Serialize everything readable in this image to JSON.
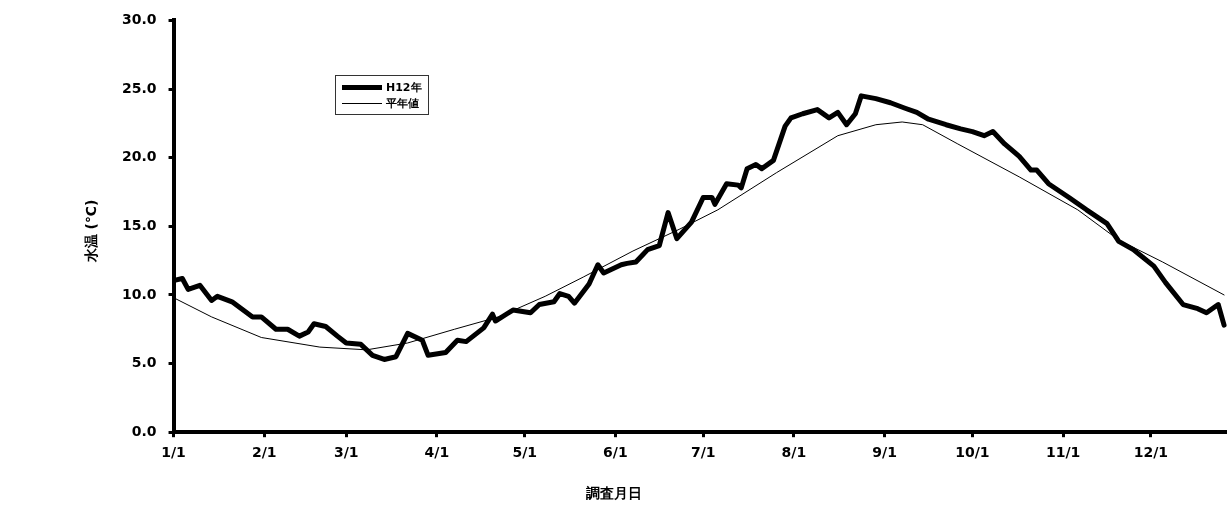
{
  "chart_data": {
    "type": "line",
    "xlabel": "調査月日",
    "ylabel": "水温 (℃)",
    "xlim": [
      "--01-01",
      "--12-27"
    ],
    "xticks": [
      {
        "value": "--01-01",
        "label": "1/1"
      },
      {
        "value": "--02-01",
        "label": "2/1"
      },
      {
        "value": "--03-01",
        "label": "3/1"
      },
      {
        "value": "--04-01",
        "label": "4/1"
      },
      {
        "value": "--05-01",
        "label": "5/1"
      },
      {
        "value": "--06-01",
        "label": "6/1"
      },
      {
        "value": "--07-01",
        "label": "7/1"
      },
      {
        "value": "--08-01",
        "label": "8/1"
      },
      {
        "value": "--09-01",
        "label": "9/1"
      },
      {
        "value": "--10-01",
        "label": "10/1"
      },
      {
        "value": "--11-01",
        "label": "11/1"
      },
      {
        "value": "--12-01",
        "label": "12/1"
      }
    ],
    "ylim": [
      0,
      30
    ],
    "yticks": [
      {
        "value": 0,
        "label": "0.0"
      },
      {
        "value": 5,
        "label": "5.0"
      },
      {
        "value": 10,
        "label": "10.0"
      },
      {
        "value": 15,
        "label": "15.0"
      },
      {
        "value": 20,
        "label": "20.0"
      },
      {
        "value": 25,
        "label": "25.0"
      },
      {
        "value": 30,
        "label": "30.0"
      }
    ],
    "grid": false,
    "legend": "top left",
    "marker": "none",
    "line_style": "solid",
    "series": [
      {
        "name": "H12年",
        "color": "#000000",
        "x": [
          "--01-02",
          "--01-04",
          "--01-06",
          "--01-10",
          "--01-14",
          "--01-16",
          "--01-21",
          "--01-28",
          "--01-31",
          "--02-05",
          "--02-09",
          "--02-13",
          "--02-16",
          "--02-18",
          "--02-22",
          "--02-26",
          "--03-01",
          "--03-06",
          "--03-10",
          "--03-14",
          "--03-18",
          "--03-22",
          "--03-27",
          "--03-29",
          "--04-04",
          "--04-08",
          "--04-11",
          "--04-17",
          "--04-20",
          "--04-21",
          "--04-27",
          "--05-03",
          "--05-06",
          "--05-11",
          "--05-13",
          "--05-16",
          "--05-18",
          "--05-23",
          "--05-26",
          "--05-28",
          "--06-03",
          "--06-05",
          "--06-08",
          "--06-12",
          "--06-16",
          "--06-19",
          "--06-22",
          "--06-27",
          "--07-01",
          "--07-04",
          "--07-05",
          "--07-09",
          "--07-13",
          "--07-14",
          "--07-16",
          "--07-19",
          "--07-21",
          "--07-25",
          "--07-29",
          "--07-31",
          "--08-04",
          "--08-09",
          "--08-13",
          "--08-16",
          "--08-19",
          "--08-22",
          "--08-24",
          "--08-29",
          "--09-03",
          "--09-08",
          "--09-12",
          "--09-16",
          "--09-22",
          "--09-27",
          "--10-01",
          "--10-05",
          "--10-08",
          "--10-12",
          "--10-17",
          "--10-21",
          "--10-23",
          "--10-27",
          "--11-03",
          "--11-09",
          "--11-16",
          "--11-20",
          "--11-25",
          "--12-02",
          "--12-06",
          "--12-12",
          "--12-17",
          "--12-20",
          "--12-24",
          "--12-26"
        ],
        "values": [
          11.1,
          11.2,
          10.4,
          10.7,
          9.6,
          9.9,
          9.5,
          8.4,
          8.4,
          7.5,
          7.5,
          7.0,
          7.3,
          7.9,
          7.7,
          7.0,
          6.5,
          6.4,
          5.6,
          5.3,
          5.5,
          7.2,
          6.7,
          5.6,
          5.8,
          6.7,
          6.6,
          7.6,
          8.6,
          8.1,
          8.9,
          8.7,
          9.3,
          9.5,
          10.1,
          9.9,
          9.4,
          10.8,
          12.2,
          11.6,
          12.2,
          12.3,
          12.4,
          13.3,
          13.6,
          16.0,
          14.1,
          15.3,
          17.1,
          17.1,
          16.6,
          18.1,
          18.0,
          17.8,
          19.2,
          19.5,
          19.2,
          19.8,
          22.3,
          22.9,
          23.2,
          23.5,
          22.9,
          23.3,
          22.4,
          23.2,
          24.5,
          24.3,
          24.0,
          23.6,
          23.3,
          22.8,
          22.4,
          22.1,
          21.9,
          21.6,
          21.9,
          21.0,
          20.1,
          19.1,
          19.1,
          18.1,
          17.1,
          16.2,
          15.2,
          13.9,
          13.3,
          12.1,
          10.9,
          9.3,
          9.0,
          8.7,
          9.3,
          7.8
        ]
      },
      {
        "name": "平年値",
        "color": "#000000",
        "x": [
          "--01-01",
          "--01-14",
          "--01-31",
          "--02-20",
          "--03-08",
          "--03-22",
          "--04-07",
          "--04-22",
          "--05-08",
          "--05-21",
          "--06-07",
          "--06-23",
          "--07-06",
          "--07-26",
          "--08-16",
          "--08-29",
          "--09-07",
          "--09-14",
          "--09-26",
          "--10-17",
          "--11-06",
          "--11-20",
          "--12-05",
          "--12-26"
        ],
        "values": [
          9.8,
          8.4,
          6.9,
          6.2,
          6.0,
          6.5,
          7.5,
          8.4,
          9.9,
          11.3,
          13.2,
          14.8,
          16.2,
          18.9,
          21.6,
          22.4,
          22.6,
          22.4,
          21.0,
          18.6,
          16.2,
          14.0,
          12.4,
          10.0
        ]
      }
    ]
  }
}
